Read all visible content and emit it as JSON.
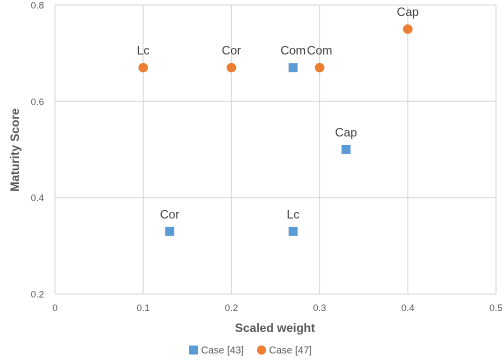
{
  "chart_data": {
    "type": "scatter",
    "xlabel": "Scaled weight",
    "ylabel": "Maturity Score",
    "xlim": [
      0,
      0.5
    ],
    "ylim": [
      0.2,
      0.8
    ],
    "x_ticks": [
      "0",
      "0.1",
      "0.2",
      "0.3",
      "0.4",
      "0.5"
    ],
    "y_ticks": [
      "0.2",
      "0.4",
      "0.6",
      "0.8"
    ],
    "grid": true,
    "legend_position": "bottom",
    "series": [
      {
        "name": "Case [43]",
        "marker": "square",
        "color": "#5b9bd5",
        "points": [
          {
            "x": 0.13,
            "y": 0.33,
            "label": "Cor"
          },
          {
            "x": 0.27,
            "y": 0.33,
            "label": "Lc"
          },
          {
            "x": 0.27,
            "y": 0.67,
            "label": "Com"
          },
          {
            "x": 0.33,
            "y": 0.5,
            "label": "Cap"
          }
        ]
      },
      {
        "name": "Case [47]",
        "marker": "circle",
        "color": "#ed7d31",
        "points": [
          {
            "x": 0.1,
            "y": 0.67,
            "label": "Lc"
          },
          {
            "x": 0.2,
            "y": 0.67,
            "label": "Cor"
          },
          {
            "x": 0.3,
            "y": 0.67,
            "label": "Com"
          },
          {
            "x": 0.4,
            "y": 0.75,
            "label": "Cap"
          }
        ]
      }
    ]
  }
}
